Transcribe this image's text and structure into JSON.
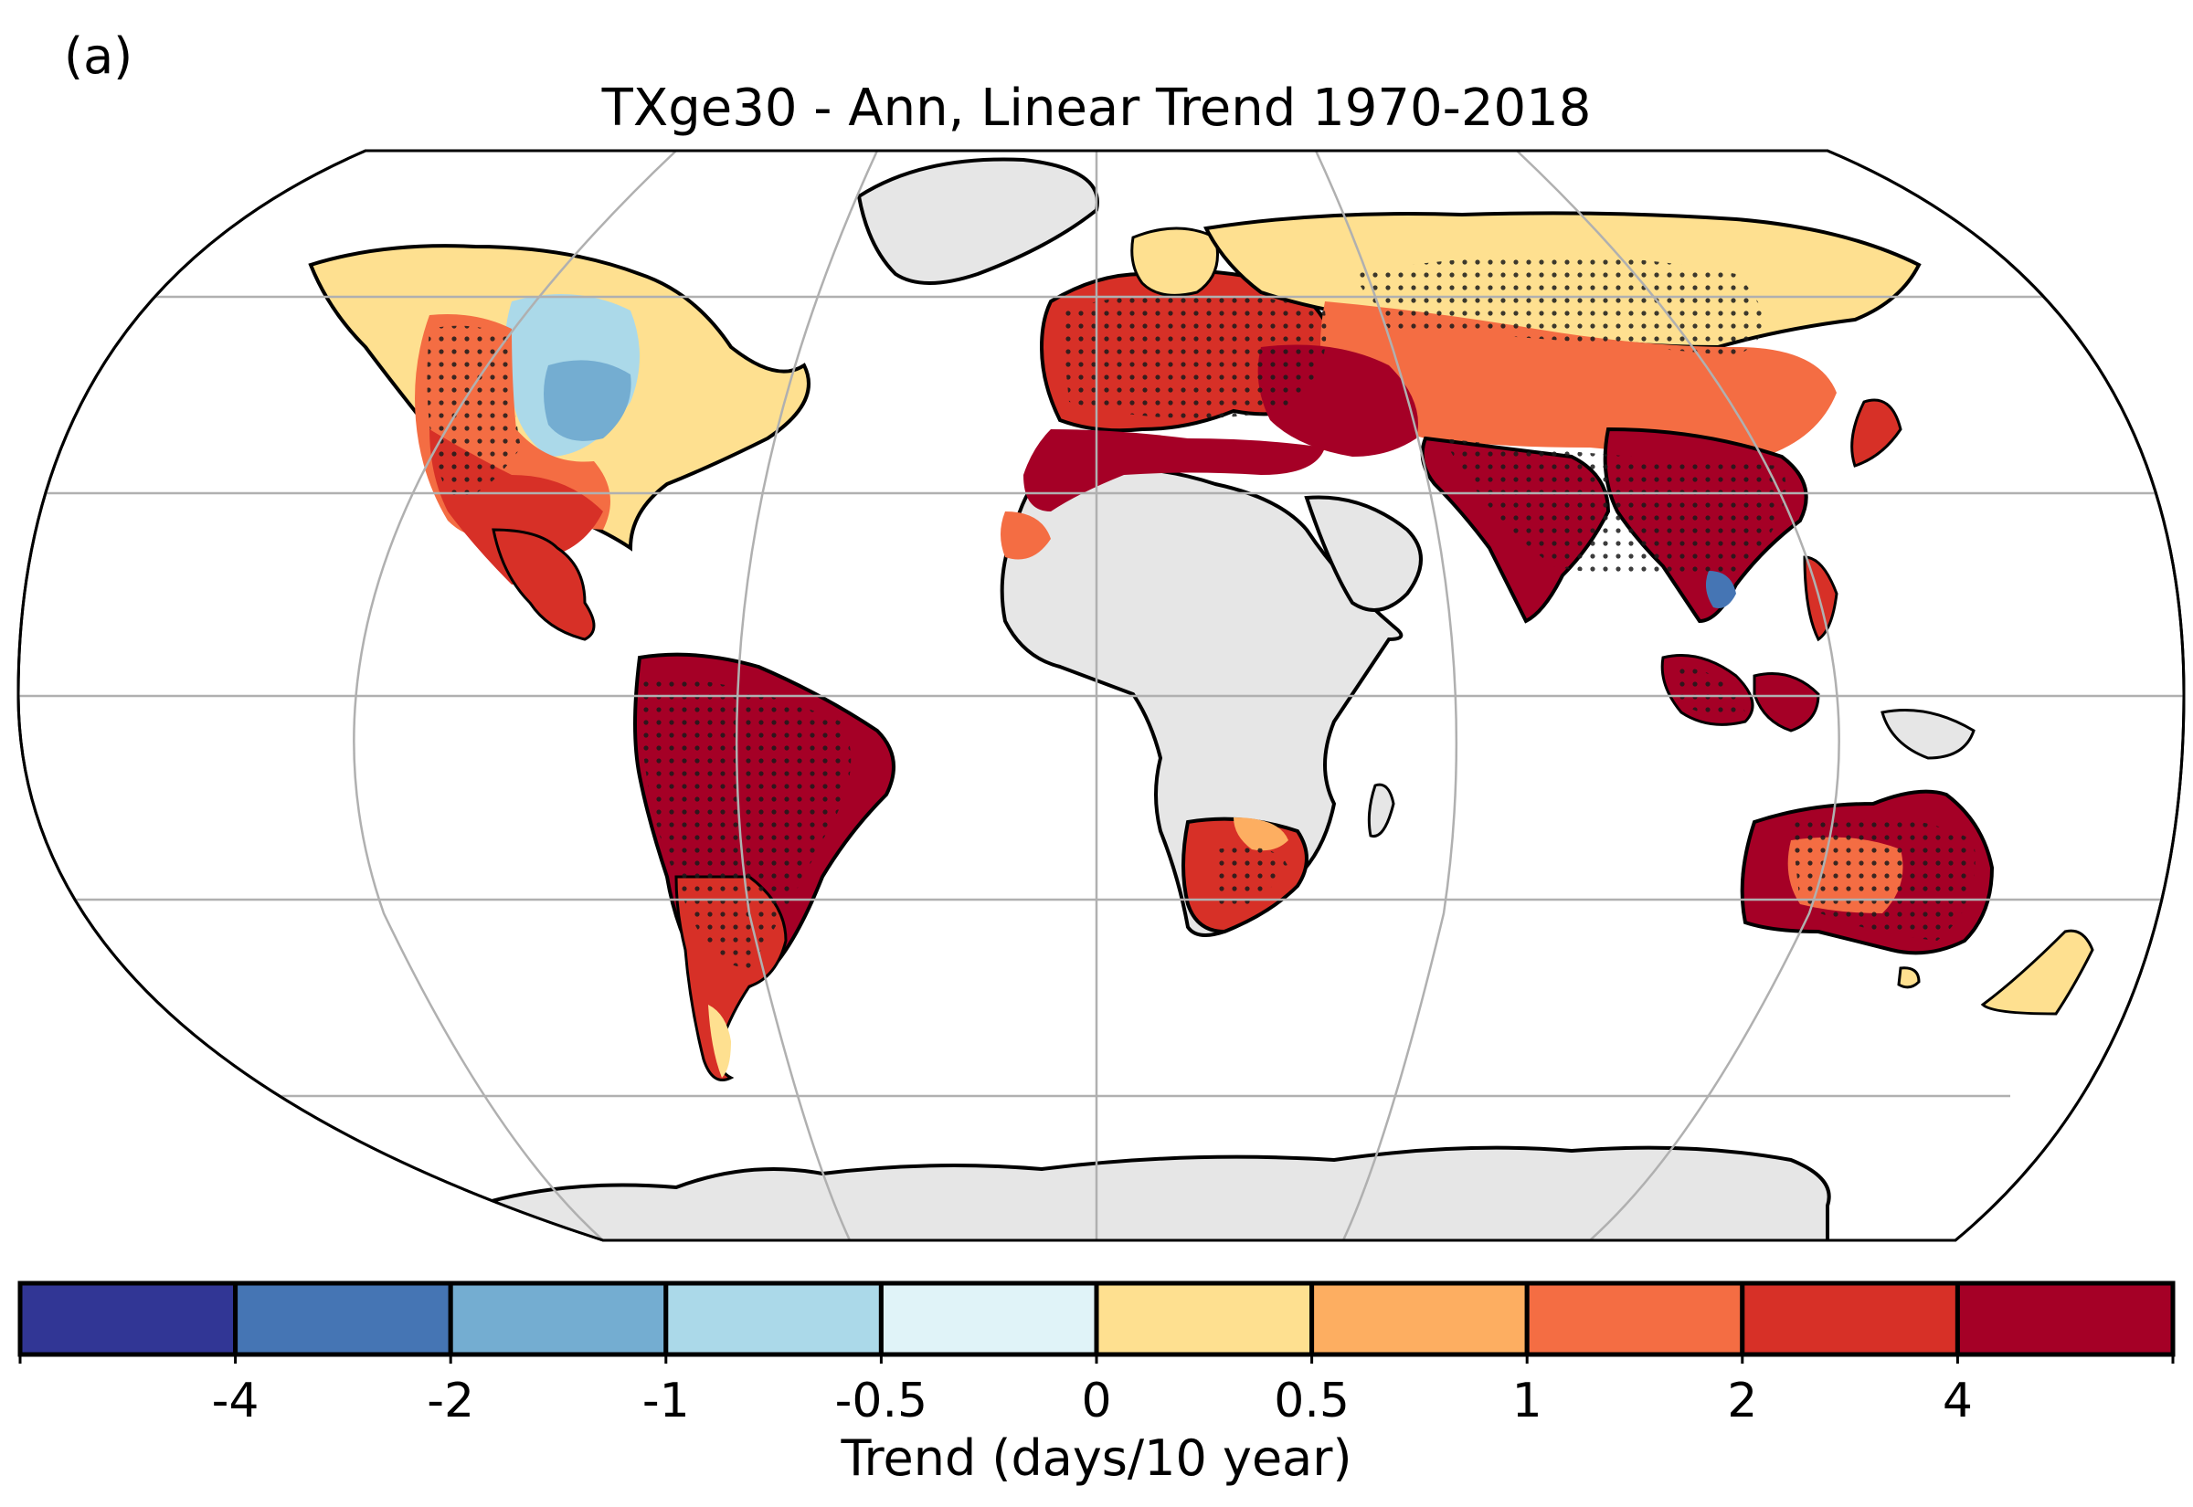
{
  "figure": {
    "panel_label": "(a)",
    "title": "TXge30 - Ann, Linear Trend 1970-2018",
    "projection": "Robinson",
    "land_fill_color": "#e6e6e6",
    "gridline_color": "#b0b0b0",
    "stippling": "dots mark grid cells with significant trend"
  },
  "colorbar": {
    "label": "Trend (days/10 year)",
    "tick_labels": [
      "-4",
      "-2",
      "-1",
      "-0.5",
      "0",
      "0.5",
      "1",
      "2",
      "4"
    ],
    "bins": [
      {
        "color": "#313695"
      },
      {
        "color": "#4575b4"
      },
      {
        "color": "#74add1"
      },
      {
        "color": "#abd9e9"
      },
      {
        "color": "#e0f3f8"
      },
      {
        "color": "#fee090"
      },
      {
        "color": "#fdae61"
      },
      {
        "color": "#f46d43"
      },
      {
        "color": "#d73027"
      },
      {
        "color": "#a50026"
      }
    ]
  },
  "regions": [
    {
      "name": "north-america-east",
      "color": "#fee090"
    },
    {
      "name": "north-america-central-low",
      "color": "#abd9e9"
    },
    {
      "name": "north-america-central-blue",
      "color": "#74add1"
    },
    {
      "name": "north-america-west",
      "color": "#f46d43"
    },
    {
      "name": "north-america-south",
      "color": "#d73027"
    },
    {
      "name": "central-america",
      "color": "#d73027"
    },
    {
      "name": "south-america",
      "color": "#a50026"
    },
    {
      "name": "south-america-south",
      "color": "#d73027"
    },
    {
      "name": "europe",
      "color": "#d73027"
    },
    {
      "name": "north-africa",
      "color": "#a50026"
    },
    {
      "name": "middle-east",
      "color": "#a50026"
    },
    {
      "name": "siberia",
      "color": "#fee090"
    },
    {
      "name": "central-asia",
      "color": "#f46d43"
    },
    {
      "name": "south-asia",
      "color": "#a50026"
    },
    {
      "name": "southeast-asia",
      "color": "#a50026"
    },
    {
      "name": "indochina-blue",
      "color": "#4575b4"
    },
    {
      "name": "maritime-continent",
      "color": "#a50026"
    },
    {
      "name": "southern-africa",
      "color": "#d73027"
    },
    {
      "name": "australia",
      "color": "#a50026"
    },
    {
      "name": "new-zealand",
      "color": "#fee090"
    }
  ]
}
